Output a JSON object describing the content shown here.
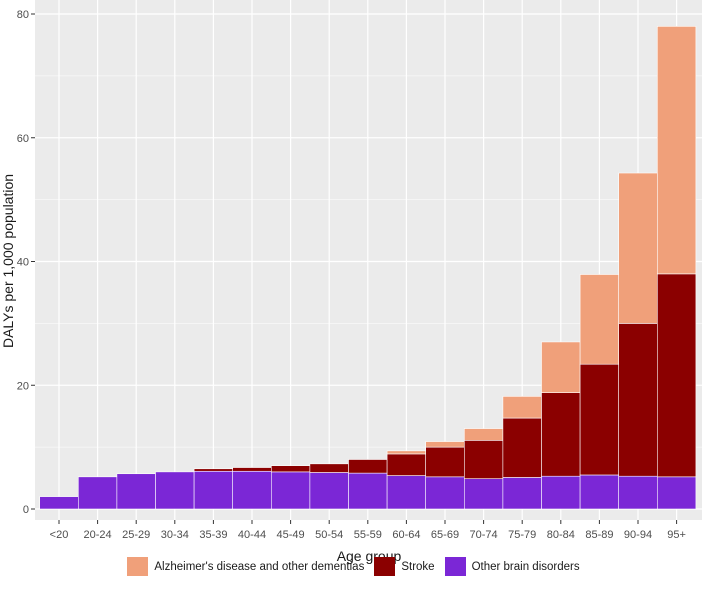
{
  "chart_data": {
    "type": "bar",
    "stacked": true,
    "categories": [
      "<20",
      "20-24",
      "25-29",
      "30-34",
      "35-39",
      "40-44",
      "45-49",
      "50-54",
      "55-59",
      "60-64",
      "65-69",
      "70-74",
      "75-79",
      "80-84",
      "85-89",
      "90-94",
      "95+"
    ],
    "series": [
      {
        "name": "Other brain disorders",
        "color": "#7b27d6",
        "values": [
          2.0,
          5.2,
          5.7,
          6.0,
          6.1,
          6.1,
          6.0,
          5.9,
          5.8,
          5.4,
          5.2,
          4.9,
          5.1,
          5.3,
          5.5,
          5.3,
          5.2
        ]
      },
      {
        "name": "Stroke",
        "color": "#8b0000",
        "values": [
          0.0,
          0.0,
          0.0,
          0.0,
          0.4,
          0.6,
          1.0,
          1.4,
          2.2,
          3.5,
          4.8,
          6.2,
          9.6,
          13.5,
          17.9,
          24.7,
          32.8
        ]
      },
      {
        "name": "Alzheimer's disease and other dementias",
        "color": "#f0a07a",
        "values": [
          0.0,
          0.0,
          0.0,
          0.0,
          0.0,
          0.0,
          0.0,
          0.0,
          0.0,
          0.5,
          0.9,
          1.9,
          3.5,
          8.2,
          14.5,
          24.3,
          40.0
        ]
      }
    ],
    "title": "",
    "xlabel": "Age group",
    "ylabel": "DALYs per 1,000 population",
    "ylim": [
      0,
      80
    ],
    "yticks": [
      0,
      20,
      40,
      60,
      80
    ],
    "grid": true,
    "legend_position": "bottom",
    "legend_order": [
      "Alzheimer's disease and other dementias",
      "Stroke",
      "Other brain disorders"
    ]
  },
  "legend": {
    "items": [
      {
        "label": "Alzheimer's disease and other dementias",
        "color": "#f0a07a"
      },
      {
        "label": "Stroke",
        "color": "#8b0000"
      },
      {
        "label": "Other brain disorders",
        "color": "#7b27d6"
      }
    ]
  }
}
